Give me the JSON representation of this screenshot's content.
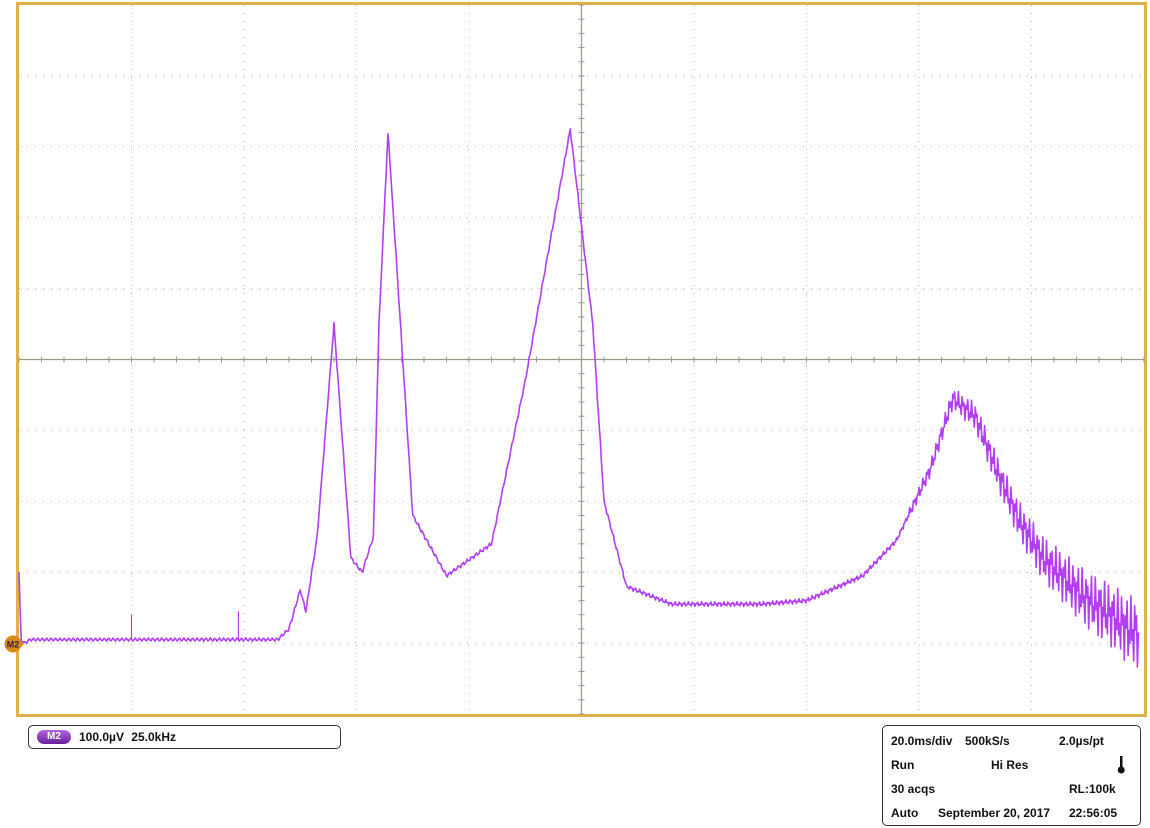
{
  "display": {
    "grid_divisions_x": 10,
    "grid_divisions_y": 10,
    "frame_color": "#e0b04a",
    "trace_color": "#b13ff0",
    "grid_color": "#b0b0a0"
  },
  "channel_marker": {
    "label": "M2",
    "color": "#d88a1a"
  },
  "math_channel": {
    "badge": "M2",
    "vertical_scale": "100.0µV",
    "horizontal_scale": "25.0kHz"
  },
  "acquisition": {
    "time_per_div": "20.0ms/div",
    "sample_rate": "500kS/s",
    "time_per_point": "2.0µs/pt",
    "state": "Run",
    "mode": "Hi Res",
    "acqs": "30 acqs",
    "record_length": "RL:100k",
    "trigger_mode": "Auto",
    "date": "September 20, 2017",
    "time": "22:56:05",
    "status_icon": "thermometer-icon"
  },
  "chart_data": {
    "type": "line",
    "x_divisions": [
      0,
      10
    ],
    "y_divisions": [
      -5,
      5
    ],
    "series": [
      {
        "x": [
          0,
          0.02,
          0.05,
          0.1,
          0.5,
          1.0,
          1.5,
          2.0,
          2.3,
          2.4,
          2.5,
          2.55,
          2.65,
          2.8,
          2.95,
          3.05,
          3.15,
          3.2,
          3.28,
          3.35,
          3.5,
          3.8,
          4.2,
          4.5,
          4.9,
          5.1,
          5.2,
          5.4,
          5.8,
          6.2,
          6.6,
          7.0,
          7.5,
          7.8,
          8.1,
          8.3,
          8.5,
          8.7,
          8.9,
          9.1,
          9.3,
          9.5,
          9.7,
          9.85,
          9.95
        ],
        "y": [
          -3.0,
          -4.0,
          -4.0,
          -3.95,
          -3.95,
          -3.95,
          -3.95,
          -3.95,
          -3.95,
          -3.8,
          -3.25,
          -3.55,
          -2.5,
          0.5,
          -2.8,
          -3.0,
          -2.5,
          0.5,
          3.2,
          1.5,
          -2.2,
          -3.05,
          -2.6,
          -0.3,
          3.25,
          0.5,
          -2.0,
          -3.2,
          -3.45,
          -3.45,
          -3.45,
          -3.4,
          -3.05,
          -2.55,
          -1.55,
          -0.55,
          -0.8,
          -1.6,
          -2.3,
          -2.8,
          -3.1,
          -3.4,
          -3.6,
          -3.8,
          -3.85
        ]
      }
    ]
  }
}
